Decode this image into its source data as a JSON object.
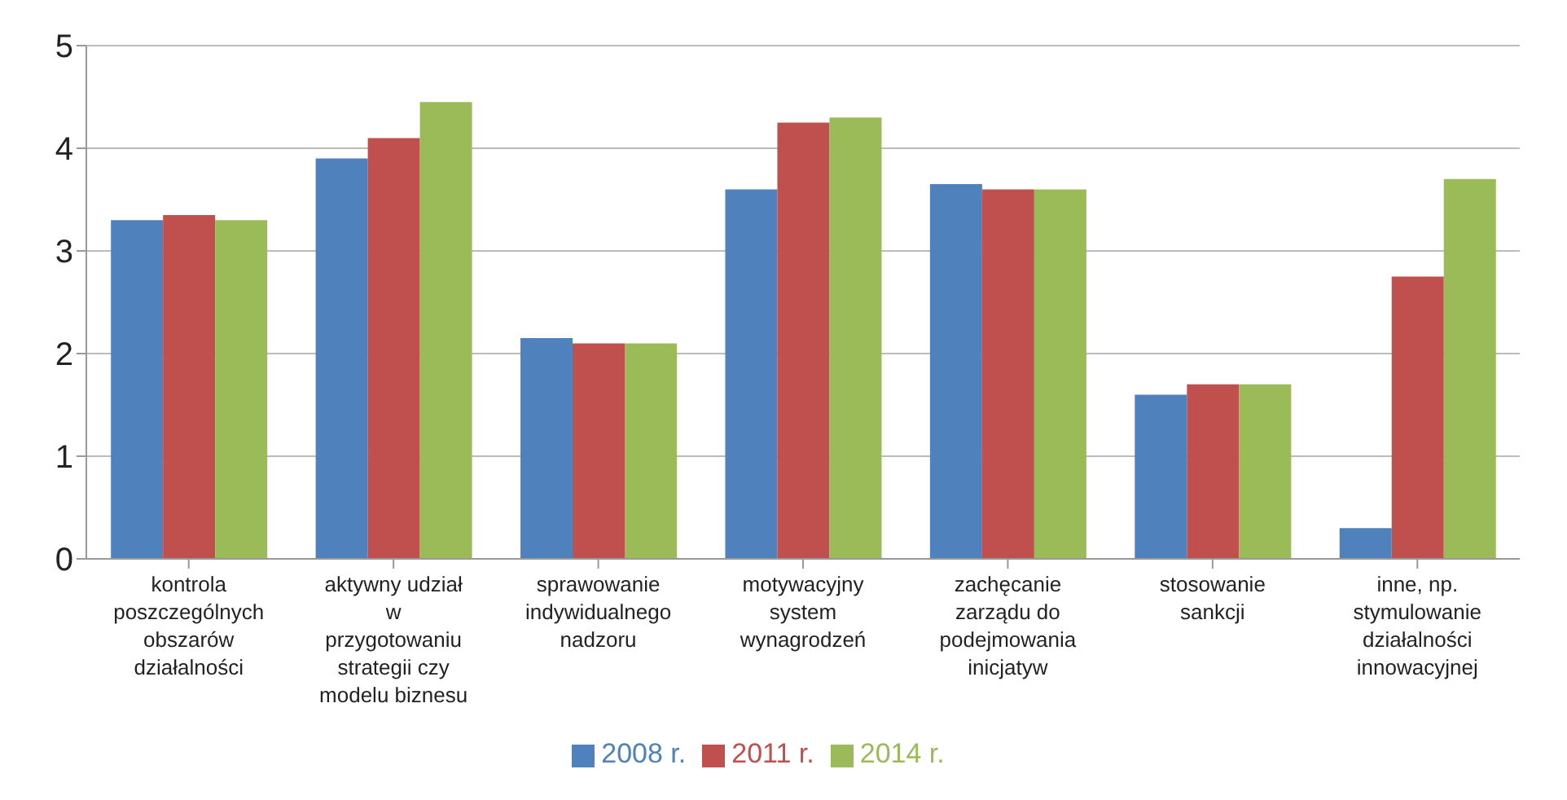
{
  "chart_data": {
    "type": "bar",
    "categories": [
      "kontrola poszczególnych obszarów działalności",
      "aktywny udział w przygotowaniu strategii czy modelu biznesu",
      "sprawowanie indywidualnego nadzoru",
      "motywacyjny system wynagrodzeń",
      "zachęcanie zarządu do podejmowania inicjatyw",
      "stosowanie sankcji",
      "inne, np. stymulowanie działalności innowacyjnej"
    ],
    "series": [
      {
        "name": "2008 r.",
        "color": "#4f81bd",
        "values": [
          3.3,
          3.9,
          2.15,
          3.6,
          3.65,
          1.6,
          0.3
        ]
      },
      {
        "name": "2011 r.",
        "color": "#c0504d",
        "values": [
          3.35,
          4.1,
          2.1,
          4.25,
          3.6,
          1.7,
          2.75
        ]
      },
      {
        "name": "2014 r.",
        "color": "#9bbb59",
        "values": [
          3.3,
          4.45,
          2.1,
          4.3,
          3.6,
          1.7,
          3.7
        ]
      }
    ],
    "ylim": [
      0,
      5
    ],
    "yticks": [
      0,
      1,
      2,
      3,
      4,
      5
    ],
    "grid": "y",
    "legend": "bottom"
  }
}
